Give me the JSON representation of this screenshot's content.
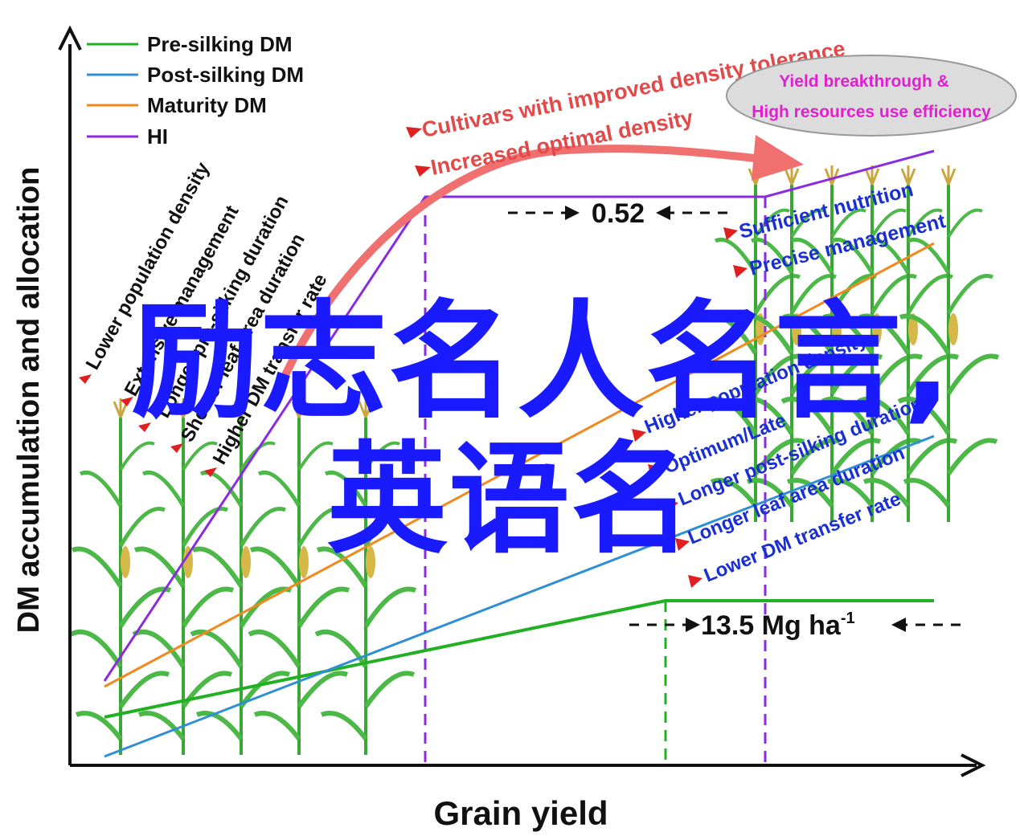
{
  "axes": {
    "ylabel": "DM accumulation and allocation",
    "xlabel": "Grain yield"
  },
  "legend": [
    {
      "label": "Pre-silking DM",
      "color": "#21b021"
    },
    {
      "label": "Post-silking DM",
      "color": "#2f8fd6"
    },
    {
      "label": "Maturity DM",
      "color": "#f08a1e"
    },
    {
      "label": "HI",
      "color": "#8a2be2"
    }
  ],
  "left_notes": [
    "Lower population density",
    "Extensive management",
    "Longer pre-silking duration",
    "Shorter leaf area duration",
    "Higher DM transfer rate"
  ],
  "arrow_notes": [
    "Cultivars with improved density tolerance",
    "Increased optimal density"
  ],
  "ellipse_notes": [
    "Yield breakthrough &",
    "High resources use efficiency"
  ],
  "right_top_notes": [
    "Sufficient nutrition",
    "Precise management"
  ],
  "right_notes": [
    "Higher population density",
    "Optimum/Late",
    "Longer  post-silking duration",
    "Longer leaf area duration",
    "Lower DM transfer rate"
  ],
  "hi_value": "0.52",
  "yield_value": "13.5 Mg ha",
  "yield_unit_exp": "-1",
  "overlay": {
    "line1": "励志名人名言,",
    "line2": "英语名"
  },
  "colors": {
    "pre_silking": "#21b021",
    "post_silking": "#2f8fd6",
    "maturity": "#f08a1e",
    "hi": "#8a2be2",
    "arrow": "#f07070",
    "note_red": "#e24a4a",
    "note_blue": "#1a2fd0",
    "ellipse_text": "#e020d0",
    "overlay": "#1a1aff"
  }
}
